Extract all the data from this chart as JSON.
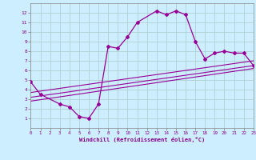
{
  "xlabel": "Windchill (Refroidissement éolien,°C)",
  "bg_color": "#cceeff",
  "grid_color": "#aacccc",
  "line_color": "#990099",
  "xlim": [
    0,
    23
  ],
  "ylim": [
    0,
    13
  ],
  "xticks": [
    0,
    1,
    2,
    3,
    4,
    5,
    6,
    7,
    8,
    9,
    10,
    11,
    12,
    13,
    14,
    15,
    16,
    17,
    18,
    19,
    20,
    21,
    22,
    23
  ],
  "yticks": [
    1,
    2,
    3,
    4,
    5,
    6,
    7,
    8,
    9,
    10,
    11,
    12
  ],
  "series1_x": [
    0,
    1,
    3,
    4,
    5,
    6,
    7,
    8,
    9,
    10,
    11,
    13,
    14,
    15,
    16,
    17,
    18,
    19,
    20,
    21,
    22,
    23
  ],
  "series1_y": [
    4.8,
    3.5,
    2.5,
    2.2,
    1.2,
    1.0,
    2.5,
    8.5,
    8.3,
    9.5,
    11.0,
    12.2,
    11.8,
    12.2,
    11.8,
    9.0,
    7.2,
    7.8,
    8.0,
    7.8,
    7.8,
    6.5
  ],
  "series2_x": [
    0,
    23
  ],
  "series2_y": [
    3.2,
    6.5
  ],
  "series3_x": [
    0,
    23
  ],
  "series3_y": [
    3.7,
    7.0
  ],
  "series4_x": [
    0,
    23
  ],
  "series4_y": [
    2.8,
    6.2
  ]
}
